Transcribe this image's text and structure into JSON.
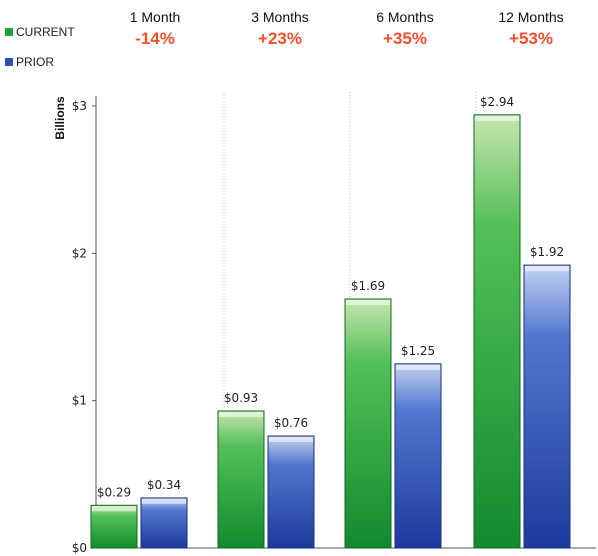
{
  "chart_data": {
    "type": "bar",
    "categories": [
      "1 Month",
      "3 Months",
      "6 Months",
      "12 Months"
    ],
    "changes": [
      "-14%",
      "+23%",
      "+35%",
      "+53%"
    ],
    "series": [
      {
        "name": "CURRENT",
        "values": [
          0.29,
          0.93,
          1.69,
          2.94
        ],
        "value_labels": [
          "$0.29",
          "$0.93",
          "$1.69",
          "$2.94"
        ],
        "color": "#1fa33b"
      },
      {
        "name": "PRIOR",
        "values": [
          0.34,
          0.76,
          1.25,
          1.92
        ],
        "value_labels": [
          "$0.34",
          "$0.76",
          "$1.25",
          "$1.92"
        ],
        "color": "#2b4fb3"
      }
    ],
    "ylabel": "Billions",
    "ylim": [
      0,
      3
    ],
    "yticks": [
      0,
      1,
      2,
      3
    ],
    "ytick_labels": [
      "$0",
      "$1",
      "$2",
      "$3"
    ],
    "grid": "vertical dotted separators",
    "legend": "top-left"
  },
  "colors": {
    "change_text": "#f0502a",
    "current": "#1fa33b",
    "prior": "#2b4fb3"
  }
}
